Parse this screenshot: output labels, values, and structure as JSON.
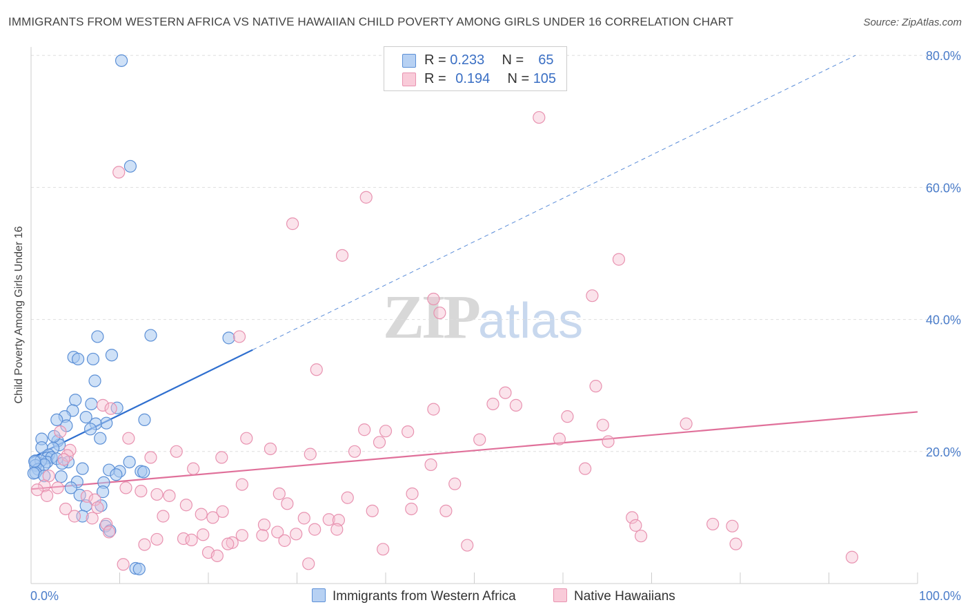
{
  "header": {
    "title": "IMMIGRANTS FROM WESTERN AFRICA VS NATIVE HAWAIIAN CHILD POVERTY AMONG GIRLS UNDER 16 CORRELATION CHART",
    "source": "Source: ZipAtlas.com"
  },
  "watermark": {
    "zip": "ZIP",
    "atlas": "atlas"
  },
  "legend": {
    "rows": [
      {
        "r_label": "R =",
        "r_value": "0.233",
        "n_label": "N =",
        "n_value": "65",
        "color": "#a8c8f0"
      },
      {
        "r_label": "R =",
        "r_value": "0.194",
        "n_label": "N =",
        "n_value": "105",
        "color": "#f6b8cc"
      }
    ]
  },
  "colors": {
    "blue_fill": "#a8c8f0",
    "blue_stroke": "#5b8fd6",
    "blue_line": "#2f6fcf",
    "pink_fill": "#f6c2d3",
    "pink_stroke": "#e892b0",
    "pink_line": "#e0709a",
    "grid": "#dddddd",
    "tick_text": "#4a7cc9"
  },
  "chart_data": {
    "type": "scatter",
    "title": "IMMIGRANTS FROM WESTERN AFRICA VS NATIVE HAWAIIAN CHILD POVERTY AMONG GIRLS UNDER 16 CORRELATION CHART",
    "xlabel": "",
    "ylabel": "Child Poverty Among Girls Under 16",
    "xlim": [
      0,
      100
    ],
    "ylim": [
      0,
      80
    ],
    "x_tick_labels": [
      "0.0%",
      "100.0%"
    ],
    "y_ticks": [
      20,
      40,
      60,
      80
    ],
    "y_tick_labels": [
      "20.0%",
      "40.0%",
      "60.0%",
      "80.0%"
    ],
    "grid": true,
    "legend_position": "top-center",
    "series": [
      {
        "name": "Immigrants from Western Africa",
        "points": [
          [
            10.2,
            79.2
          ],
          [
            11.2,
            63.2
          ],
          [
            13.5,
            37.6
          ],
          [
            7.5,
            37.4
          ],
          [
            22.3,
            37.2
          ],
          [
            4.8,
            34.3
          ],
          [
            9.1,
            34.6
          ],
          [
            5.3,
            34.0
          ],
          [
            7.0,
            34.0
          ],
          [
            7.2,
            30.7
          ],
          [
            5.0,
            27.8
          ],
          [
            6.8,
            27.2
          ],
          [
            9.7,
            26.6
          ],
          [
            4.7,
            26.2
          ],
          [
            3.8,
            25.3
          ],
          [
            6.2,
            25.2
          ],
          [
            2.9,
            24.8
          ],
          [
            8.5,
            24.3
          ],
          [
            12.8,
            24.8
          ],
          [
            7.3,
            24.2
          ],
          [
            4.0,
            23.9
          ],
          [
            6.7,
            23.4
          ],
          [
            1.2,
            21.9
          ],
          [
            7.8,
            22.0
          ],
          [
            3.0,
            21.6
          ],
          [
            3.2,
            21.0
          ],
          [
            1.2,
            20.6
          ],
          [
            2.5,
            20.5
          ],
          [
            2.0,
            19.5
          ],
          [
            1.8,
            19.0
          ],
          [
            2.3,
            19.1
          ],
          [
            1.8,
            18.4
          ],
          [
            2.9,
            18.9
          ],
          [
            0.5,
            18.6
          ],
          [
            1.1,
            18.6
          ],
          [
            4.2,
            18.4
          ],
          [
            3.5,
            18.2
          ],
          [
            1.5,
            18.0
          ],
          [
            0.5,
            17.9
          ],
          [
            0.8,
            17.3
          ],
          [
            0.5,
            16.8
          ],
          [
            0.3,
            16.7
          ],
          [
            5.8,
            17.4
          ],
          [
            11.1,
            18.4
          ],
          [
            8.8,
            17.2
          ],
          [
            10.0,
            17.0
          ],
          [
            12.4,
            17.0
          ],
          [
            12.7,
            16.9
          ],
          [
            1.5,
            16.3
          ],
          [
            3.4,
            16.2
          ],
          [
            9.6,
            16.5
          ],
          [
            5.2,
            15.4
          ],
          [
            8.2,
            15.3
          ],
          [
            4.5,
            14.5
          ],
          [
            8.1,
            13.9
          ],
          [
            5.5,
            13.4
          ],
          [
            6.2,
            11.8
          ],
          [
            7.9,
            11.8
          ],
          [
            5.8,
            10.2
          ],
          [
            8.4,
            8.7
          ],
          [
            8.9,
            8.0
          ],
          [
            11.8,
            2.3
          ],
          [
            12.2,
            2.2
          ],
          [
            0.4,
            18.5
          ],
          [
            2.6,
            22.3
          ]
        ]
      },
      {
        "name": "Native Hawaiians",
        "points": [
          [
            57.3,
            70.6
          ],
          [
            9.9,
            62.3
          ],
          [
            37.8,
            58.5
          ],
          [
            29.5,
            54.5
          ],
          [
            35.1,
            49.7
          ],
          [
            66.3,
            49.1
          ],
          [
            45.4,
            43.1
          ],
          [
            63.3,
            43.6
          ],
          [
            46.1,
            41.0
          ],
          [
            23.5,
            37.4
          ],
          [
            32.2,
            32.4
          ],
          [
            63.7,
            29.9
          ],
          [
            53.5,
            28.9
          ],
          [
            52.1,
            27.2
          ],
          [
            54.7,
            27.0
          ],
          [
            45.4,
            26.4
          ],
          [
            8.1,
            27.0
          ],
          [
            9.0,
            26.5
          ],
          [
            60.5,
            25.3
          ],
          [
            64.5,
            24.0
          ],
          [
            73.9,
            24.2
          ],
          [
            37.6,
            23.3
          ],
          [
            40.0,
            23.1
          ],
          [
            42.5,
            23.0
          ],
          [
            3.3,
            23.0
          ],
          [
            11.0,
            22.0
          ],
          [
            24.3,
            22.0
          ],
          [
            50.6,
            21.8
          ],
          [
            59.6,
            21.9
          ],
          [
            39.3,
            21.4
          ],
          [
            65.1,
            21.5
          ],
          [
            27.0,
            20.4
          ],
          [
            36.5,
            20.0
          ],
          [
            4.4,
            20.2
          ],
          [
            16.4,
            20.0
          ],
          [
            31.5,
            19.6
          ],
          [
            4.1,
            19.4
          ],
          [
            21.5,
            19.1
          ],
          [
            13.5,
            19.1
          ],
          [
            3.7,
            18.8
          ],
          [
            2.0,
            16.3
          ],
          [
            18.3,
            17.4
          ],
          [
            45.1,
            18.0
          ],
          [
            62.5,
            17.4
          ],
          [
            23.8,
            15.0
          ],
          [
            47.8,
            15.1
          ],
          [
            1.5,
            14.8
          ],
          [
            0.7,
            14.2
          ],
          [
            10.7,
            14.5
          ],
          [
            12.4,
            14.0
          ],
          [
            3.0,
            14.5
          ],
          [
            28.0,
            13.6
          ],
          [
            14.2,
            13.5
          ],
          [
            15.6,
            13.3
          ],
          [
            43.0,
            13.6
          ],
          [
            1.8,
            13.3
          ],
          [
            6.3,
            13.2
          ],
          [
            7.2,
            12.7
          ],
          [
            35.7,
            13.0
          ],
          [
            28.9,
            12.1
          ],
          [
            17.5,
            11.9
          ],
          [
            7.5,
            11.5
          ],
          [
            3.9,
            11.3
          ],
          [
            42.9,
            11.3
          ],
          [
            38.5,
            11.0
          ],
          [
            46.8,
            11.0
          ],
          [
            21.6,
            10.9
          ],
          [
            19.2,
            10.5
          ],
          [
            4.9,
            10.2
          ],
          [
            14.9,
            10.2
          ],
          [
            20.5,
            10.0
          ],
          [
            6.9,
            9.9
          ],
          [
            30.8,
            9.9
          ],
          [
            67.8,
            10.0
          ],
          [
            33.6,
            9.7
          ],
          [
            34.7,
            9.6
          ],
          [
            8.5,
            9.0
          ],
          [
            26.3,
            8.9
          ],
          [
            68.2,
            8.8
          ],
          [
            76.9,
            9.0
          ],
          [
            79.1,
            8.7
          ],
          [
            32.0,
            8.2
          ],
          [
            34.5,
            8.2
          ],
          [
            8.8,
            7.8
          ],
          [
            27.8,
            7.8
          ],
          [
            29.9,
            7.5
          ],
          [
            19.4,
            7.4
          ],
          [
            26.1,
            7.3
          ],
          [
            23.8,
            7.3
          ],
          [
            68.8,
            7.2
          ],
          [
            17.2,
            6.8
          ],
          [
            14.2,
            6.7
          ],
          [
            18.1,
            6.6
          ],
          [
            28.6,
            6.5
          ],
          [
            22.7,
            6.2
          ],
          [
            22.2,
            6.0
          ],
          [
            12.8,
            5.9
          ],
          [
            49.2,
            5.8
          ],
          [
            79.5,
            6.0
          ],
          [
            39.7,
            5.2
          ],
          [
            20.0,
            4.7
          ],
          [
            21.0,
            4.2
          ],
          [
            92.6,
            4.0
          ],
          [
            31.3,
            3.0
          ],
          [
            10.4,
            2.9
          ]
        ]
      }
    ],
    "trend_lines": [
      {
        "series": "Immigrants from Western Africa",
        "x0": 0.0,
        "y0": 19.0,
        "x_solid_end": 25.0,
        "x1": 93.0,
        "y1": 80.0
      },
      {
        "series": "Native Hawaiians",
        "x0": 0.0,
        "y0": 14.3,
        "x1": 100.0,
        "y1": 26.0
      }
    ]
  },
  "bottom_legend": {
    "items": [
      {
        "label": "Immigrants from Western Africa"
      },
      {
        "label": "Native Hawaiians"
      }
    ]
  }
}
